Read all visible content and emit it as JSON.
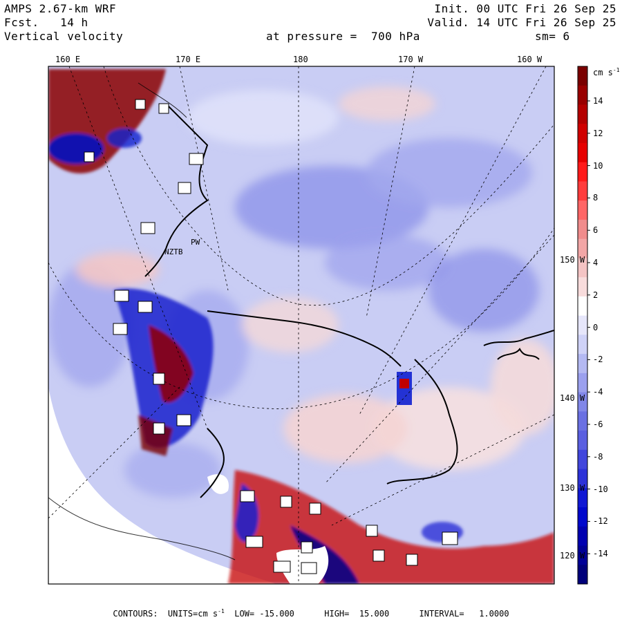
{
  "header": {
    "model": "AMPS 2.67-km WRF",
    "forecast": "Fcst.   14 h",
    "field": "Vertical velocity",
    "init": "Init. 00 UTC Fri 26 Sep 25",
    "valid": "Valid. 14 UTC Fri 26 Sep 25",
    "level": "at pressure =  700 hPa",
    "smoothing": "sm= 6"
  },
  "top_longitudes": [
    "160 E",
    "170 E",
    "180",
    "170 W",
    "160 W"
  ],
  "right_longitudes": [
    "150 W",
    "140 W",
    "130 W",
    "120 W"
  ],
  "colorbar": {
    "units": "cm s",
    "units_exp": "-1",
    "labels": [
      "14",
      "12",
      "10",
      "8",
      "6",
      "4",
      "2",
      "0",
      "-2",
      "-4",
      "-6",
      "-8",
      "-10",
      "-12",
      "-14"
    ],
    "colors": [
      "#7a0000",
      "#990000",
      "#b40000",
      "#d00000",
      "#e60000",
      "#ff1a1a",
      "#ff3c3c",
      "#ff6666",
      "#f08c8c",
      "#f2a6a6",
      "#f4c4c4",
      "#f8dcdc",
      "#ffffff",
      "#e6e6fa",
      "#cfd2f7",
      "#b4b9f2",
      "#9ba0ee",
      "#8187e8",
      "#6a70e2",
      "#5a5fe0",
      "#4146dc",
      "#2c32d8",
      "#1018d4",
      "#0008cc",
      "#0000b0",
      "#000096",
      "#00007a"
    ]
  },
  "station_labels": [
    "NZTB",
    "PW"
  ],
  "footer": {
    "text": "CONTOURS:  UNITS=cm s",
    "exp": "-1",
    "rest": "  LOW= -15.000      HIGH=  15.000      INTERVAL=   1.0000"
  }
}
